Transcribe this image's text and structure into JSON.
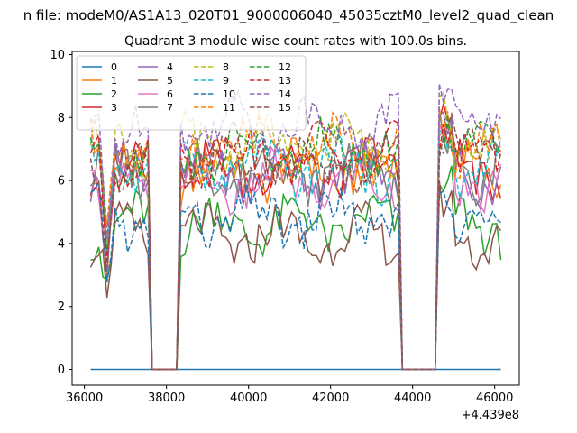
{
  "chart_data": {
    "type": "line",
    "suptitle": "n file: modeM0/AS1A13_020T01_9000006040_45035cztM0_level2_quad_clean",
    "title": "Quadrant 3 module wise count rates with 100.0s bins.",
    "xlabel": "",
    "ylabel": "",
    "x_offset_label": "+4.439e8",
    "xlim": [
      35700,
      46600
    ],
    "ylim": [
      -0.5,
      10.1
    ],
    "xticks": [
      36000,
      38000,
      40000,
      42000,
      44000,
      46000
    ],
    "xtick_labels": [
      "36000",
      "38000",
      "40000",
      "42000",
      "44000",
      "46000"
    ],
    "yticks": [
      0,
      2,
      4,
      6,
      8,
      10
    ],
    "ytick_labels": [
      "0",
      "2",
      "4",
      "6",
      "8",
      "10"
    ],
    "grid": false,
    "legend_position": "top-left",
    "legend_columns": 4,
    "series": [
      {
        "name": "0",
        "color": "#1f77b4",
        "dash": "solid",
        "profile": "flat",
        "level": 0
      },
      {
        "name": "1",
        "color": "#ff7f0e",
        "dash": "solid",
        "profile": "typical",
        "level": 6.3,
        "phase": 1
      },
      {
        "name": "2",
        "color": "#2ca02c",
        "dash": "solid",
        "profile": "typical",
        "level": 4.6,
        "phase": 2
      },
      {
        "name": "3",
        "color": "#d62728",
        "dash": "solid",
        "profile": "typical",
        "level": 6.4,
        "phase": 3
      },
      {
        "name": "4",
        "color": "#9467bd",
        "dash": "solid",
        "profile": "typical",
        "level": 6.2,
        "phase": 4
      },
      {
        "name": "5",
        "color": "#8c564b",
        "dash": "solid",
        "profile": "typical",
        "level": 4.2,
        "phase": 5
      },
      {
        "name": "6",
        "color": "#e377c2",
        "dash": "solid",
        "profile": "typical",
        "level": 5.9,
        "phase": 6
      },
      {
        "name": "7",
        "color": "#7f7f7f",
        "dash": "solid",
        "profile": "typical",
        "level": 6.3,
        "phase": 7
      },
      {
        "name": "8",
        "color": "#bcbd22",
        "dash": "dashed",
        "profile": "typical",
        "level": 7.1,
        "phase": 8
      },
      {
        "name": "9",
        "color": "#17becf",
        "dash": "dashed",
        "profile": "typical",
        "level": 6.4,
        "phase": 9
      },
      {
        "name": "10",
        "color": "#1f77b4",
        "dash": "dashed",
        "profile": "typical",
        "level": 4.8,
        "phase": 10
      },
      {
        "name": "11",
        "color": "#ff7f0e",
        "dash": "dashed",
        "profile": "typical",
        "level": 7.0,
        "phase": 11
      },
      {
        "name": "12",
        "color": "#2ca02c",
        "dash": "dashed",
        "profile": "typical",
        "level": 6.9,
        "phase": 12
      },
      {
        "name": "13",
        "color": "#d62728",
        "dash": "dashed",
        "profile": "typical",
        "level": 6.8,
        "phase": 13
      },
      {
        "name": "14",
        "color": "#9467bd",
        "dash": "dashed",
        "profile": "typical",
        "level": 7.8,
        "phase": 14
      },
      {
        "name": "15",
        "color": "#8c564b",
        "dash": "dashed",
        "profile": "typical",
        "level": 6.6,
        "phase": 15
      }
    ],
    "x_start": 36150,
    "x_end": 46150,
    "x_step": 100,
    "gaps": [
      [
        37650,
        38250
      ],
      [
        43750,
        44550
      ]
    ],
    "dip_region": [
      36350,
      36750
    ],
    "dip_depth": 2.7
  }
}
